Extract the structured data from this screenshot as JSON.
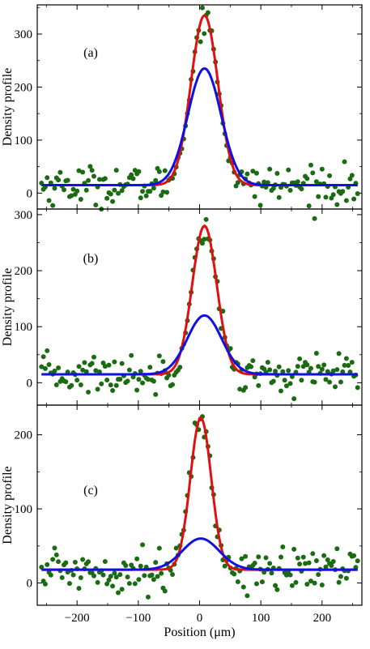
{
  "chart_data": [
    {
      "type": "scatter",
      "panel_label": "(a)",
      "xlim": [
        -265,
        265
      ],
      "ylim": [
        -30,
        355
      ],
      "yticks": [
        0,
        100,
        200,
        300
      ],
      "ylabel": "Density profile",
      "xlabel": "",
      "show_xtick_labels": false,
      "baseline": 15,
      "center": 8,
      "fit_red": {
        "peak": 335,
        "sigma": 22,
        "color": "#e01010"
      },
      "fit_blue": {
        "peak": 235,
        "sigma": 27,
        "color": "#1010e0"
      },
      "marker_color": "#1a6b12",
      "noise_amplitude": 18
    },
    {
      "type": "scatter",
      "panel_label": "(b)",
      "xlim": [
        -265,
        265
      ],
      "ylim": [
        -40,
        310
      ],
      "yticks": [
        0,
        100,
        200,
        300
      ],
      "ylabel": "Density profile",
      "xlabel": "",
      "show_xtick_labels": false,
      "baseline": 15,
      "center": 8,
      "fit_red": {
        "peak": 280,
        "sigma": 20,
        "color": "#e01010"
      },
      "fit_blue": {
        "peak": 120,
        "sigma": 28,
        "color": "#1010e0"
      },
      "marker_color": "#1a6b12",
      "noise_amplitude": 18
    },
    {
      "type": "scatter",
      "panel_label": "(c)",
      "xlim": [
        -265,
        265
      ],
      "ylim": [
        -30,
        240
      ],
      "yticks": [
        0,
        100,
        200
      ],
      "xticks": [
        -200,
        -100,
        0,
        100,
        200
      ],
      "ylabel": "Density profile",
      "xlabel": "Position (μm)",
      "show_xtick_labels": true,
      "baseline": 18,
      "center": 2,
      "fit_red": {
        "peak": 223,
        "sigma": 17,
        "color": "#e01010"
      },
      "fit_blue": {
        "peak": 60,
        "sigma": 30,
        "color": "#1010e0"
      },
      "marker_color": "#1a6b12",
      "noise_amplitude": 15
    }
  ]
}
